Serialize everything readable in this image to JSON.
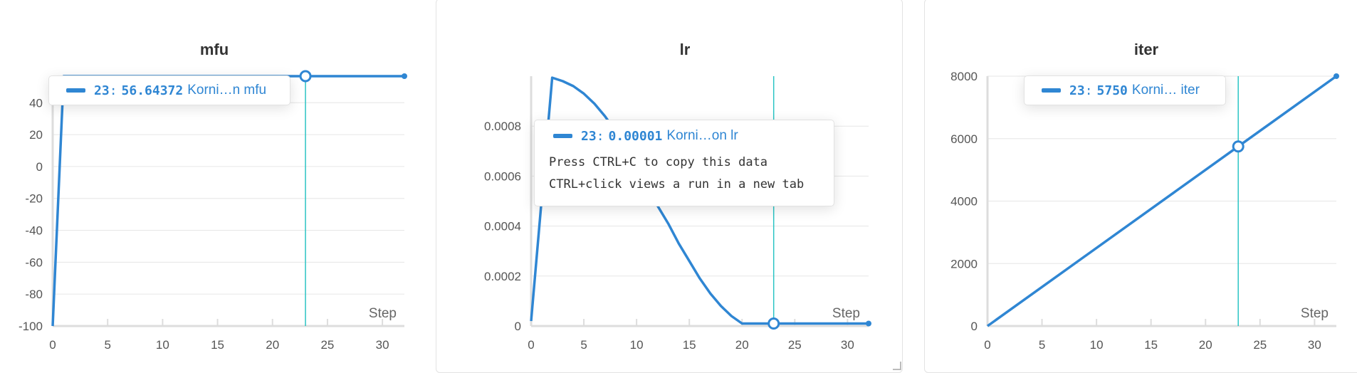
{
  "theme": {
    "line": "#2f86d3",
    "cursor": "#2bc4c4",
    "grid": "#e6e6e6",
    "axis": "#dddddd"
  },
  "tooltip_hint": {
    "line1": "Press CTRL+C to copy this data",
    "line2": "CTRL+click views a run in a new tab"
  },
  "axis_label": "Step",
  "chart_data": [
    {
      "type": "line",
      "title": "mfu",
      "xlabel": "Step",
      "xlim": [
        0,
        32
      ],
      "ylim": [
        -100,
        56.64372
      ],
      "xticks": [
        0,
        5,
        10,
        15,
        20,
        25,
        30
      ],
      "yticks": [
        -100,
        -80,
        -60,
        -40,
        -20,
        0,
        20,
        40
      ],
      "x": [
        0,
        1,
        2,
        5,
        10,
        15,
        20,
        23,
        25,
        30,
        32
      ],
      "values": [
        -100,
        56.64372,
        56.64372,
        56.64372,
        56.64372,
        56.64372,
        56.64372,
        56.64372,
        56.64372,
        56.64372,
        56.64372
      ],
      "hover": {
        "step": "23",
        "value": "56.64372",
        "run": "Korni…n mfu"
      }
    },
    {
      "type": "line",
      "title": "lr",
      "xlabel": "Step",
      "xlim": [
        0,
        32
      ],
      "ylim": [
        0,
        0.001
      ],
      "xticks": [
        0,
        5,
        10,
        15,
        20,
        25,
        30
      ],
      "yticks": [
        0,
        0.0002,
        0.0004,
        0.0006,
        0.0008
      ],
      "ytick_labels": [
        "0",
        "0.0002",
        "0.0004",
        "0.0006",
        "0.0008"
      ],
      "x": [
        0,
        2,
        3,
        4,
        5,
        6,
        7,
        8,
        9,
        10,
        11,
        12,
        13,
        14,
        15,
        16,
        17,
        18,
        19,
        20,
        21,
        22,
        23,
        24,
        25,
        26,
        27,
        28,
        29,
        30,
        31,
        32
      ],
      "values": [
        2e-05,
        0.000994,
        0.00098,
        0.00096,
        0.00093,
        0.00089,
        0.00084,
        0.00078,
        0.00071,
        0.00064,
        0.00056,
        0.00048,
        0.00041,
        0.00033,
        0.00026,
        0.00019,
        0.00013,
        8e-05,
        4e-05,
        1e-05,
        1e-05,
        1e-05,
        1e-05,
        1e-05,
        1e-05,
        1e-05,
        1e-05,
        1e-05,
        1e-05,
        1e-05,
        1e-05,
        1e-05
      ],
      "hover": {
        "step": "23",
        "value": "0.00001",
        "run": "Korni…on lr"
      }
    },
    {
      "type": "line",
      "title": "iter",
      "xlabel": "Step",
      "xlim": [
        0,
        32
      ],
      "ylim": [
        0,
        8000
      ],
      "xticks": [
        0,
        5,
        10,
        15,
        20,
        25,
        30
      ],
      "yticks": [
        0,
        2000,
        4000,
        6000,
        8000
      ],
      "x": [
        0,
        32
      ],
      "values": [
        0,
        8000
      ],
      "hover_point": {
        "x": 23,
        "y": 5750
      },
      "hover": {
        "step": "23",
        "value": "5750",
        "run": "Korni… iter"
      }
    }
  ]
}
